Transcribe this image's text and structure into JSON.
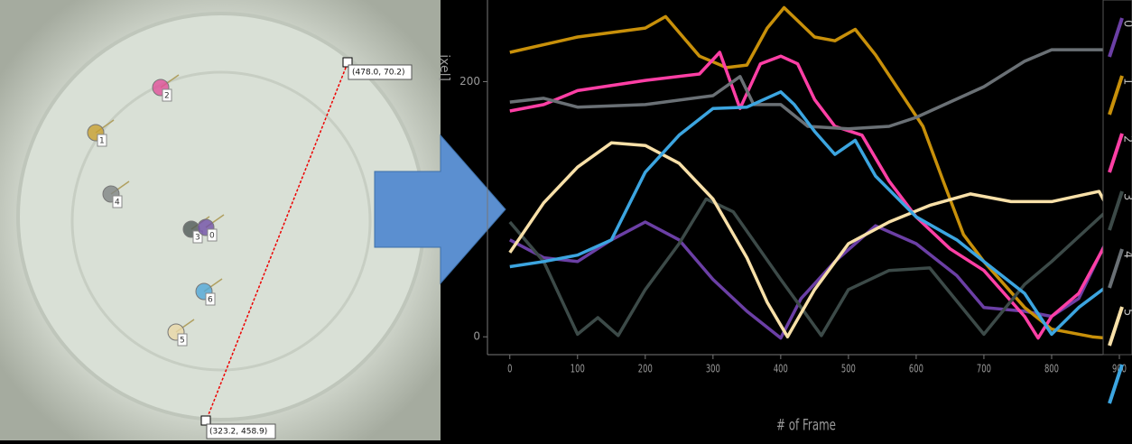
{
  "photo": {
    "markers": [
      "2",
      "1",
      "4",
      "3",
      "0",
      "6",
      "5"
    ],
    "points": [
      "(478.0, 70.2)",
      "(323.2, 458.9)"
    ]
  },
  "chart_data": {
    "type": "line",
    "ylabel": "ixel]",
    "xlabel": "# of Frame",
    "xlim": [
      -33,
      900
    ],
    "ylim": [
      -14,
      264
    ],
    "xticks": [
      0,
      100,
      200,
      300,
      400,
      500,
      600,
      700,
      800,
      900
    ],
    "yticks": [
      0,
      200
    ],
    "grid": false,
    "legend": "right",
    "series": [
      {
        "name": "0",
        "color": "#6b3fa5",
        "x": [
          0,
          50,
          100,
          150,
          200,
          250,
          300,
          350,
          400,
          430,
          480,
          540,
          600,
          660,
          700,
          760,
          800,
          840,
          880
        ],
        "values": [
          76,
          62,
          59,
          76,
          90,
          76,
          45,
          20,
          -1,
          30,
          59,
          87,
          73,
          48,
          23,
          20,
          16,
          30,
          74
        ]
      },
      {
        "name": "1",
        "color": "#c8900a",
        "x": [
          0,
          100,
          200,
          230,
          280,
          320,
          350,
          380,
          405,
          450,
          480,
          510,
          540,
          580,
          610,
          640,
          670,
          700,
          760,
          800,
          860,
          880
        ],
        "values": [
          223,
          235,
          242,
          251,
          220,
          211,
          213,
          242,
          258,
          235,
          232,
          241,
          221,
          189,
          165,
          122,
          80,
          59,
          23,
          6,
          0,
          -1
        ]
      },
      {
        "name": "2",
        "color": "#ff3fa5",
        "x": [
          0,
          50,
          100,
          200,
          280,
          310,
          340,
          370,
          400,
          425,
          450,
          480,
          520,
          560,
          600,
          650,
          700,
          760,
          780,
          800,
          840,
          880
        ],
        "values": [
          177,
          182,
          193,
          201,
          206,
          223,
          179,
          214,
          220,
          214,
          186,
          165,
          158,
          122,
          94,
          69,
          52,
          16,
          -1,
          16,
          34,
          73
        ]
      },
      {
        "name": "3",
        "color": "#3c4a48",
        "x": [
          0,
          50,
          100,
          130,
          160,
          200,
          250,
          290,
          330,
          400,
          460,
          500,
          560,
          620,
          700,
          760,
          800,
          880
        ],
        "values": [
          90,
          59,
          2,
          15,
          1,
          37,
          73,
          108,
          98,
          45,
          1,
          37,
          52,
          54,
          2,
          41,
          59,
          98
        ]
      },
      {
        "name": "4",
        "color": "#6a7075",
        "x": [
          0,
          50,
          100,
          200,
          300,
          340,
          360,
          400,
          440,
          500,
          560,
          600,
          700,
          760,
          800,
          880
        ],
        "values": [
          184,
          187,
          180,
          182,
          189,
          204,
          182,
          182,
          165,
          163,
          165,
          172,
          196,
          216,
          225,
          225
        ]
      },
      {
        "name": "5",
        "color": "#f8e0a8",
        "x": [
          0,
          50,
          100,
          150,
          200,
          250,
          300,
          350,
          380,
          410,
          450,
          500,
          560,
          620,
          680,
          740,
          800,
          870,
          880
        ],
        "values": [
          66,
          105,
          133,
          152,
          150,
          136,
          108,
          62,
          27,
          0,
          37,
          73,
          90,
          103,
          112,
          106,
          106,
          114,
          104
        ]
      },
      {
        "name": null,
        "color": "#3ca5e0",
        "x": [
          0,
          50,
          100,
          150,
          200,
          250,
          300,
          350,
          400,
          420,
          450,
          480,
          510,
          540,
          600,
          660,
          700,
          760,
          800,
          840,
          880
        ],
        "values": [
          55,
          59,
          64,
          76,
          129,
          158,
          179,
          180,
          192,
          182,
          161,
          143,
          154,
          126,
          94,
          76,
          59,
          34,
          2,
          23,
          39
        ]
      }
    ]
  }
}
